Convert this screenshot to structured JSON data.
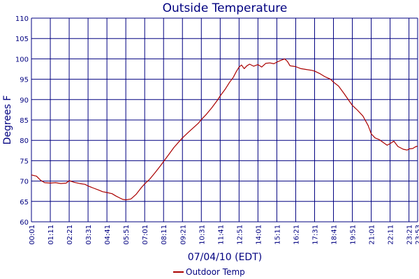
{
  "colors": {
    "axis": "#000080",
    "series": "#aa0000",
    "background": "#ffffff"
  },
  "chart_data": {
    "type": "line",
    "title": "Outside Temperature",
    "xlabel": "07/04/10 (EDT)",
    "ylabel": "Degrees F",
    "grid": true,
    "legend_position": "bottom-center",
    "x_ticks": [
      "00:01",
      "01:11",
      "02:21",
      "03:31",
      "04:41",
      "05:51",
      "07:01",
      "08:11",
      "09:21",
      "10:31",
      "11:41",
      "12:51",
      "14:01",
      "15:11",
      "16:21",
      "17:31",
      "18:41",
      "19:51",
      "21:01",
      "22:11",
      "23:21",
      "23:53"
    ],
    "y_ticks": [
      60,
      65,
      70,
      75,
      80,
      85,
      90,
      95,
      100,
      105,
      110
    ],
    "ylim": [
      60,
      110
    ],
    "xlim": [
      "00:01",
      "23:53"
    ],
    "series": [
      {
        "name": "Outdoor Temp",
        "color": "#aa0000",
        "points": [
          [
            "00:01",
            71.5
          ],
          [
            "00:20",
            71.2
          ],
          [
            "00:35",
            70.2
          ],
          [
            "00:50",
            69.6
          ],
          [
            "01:11",
            69.5
          ],
          [
            "01:30",
            69.6
          ],
          [
            "01:50",
            69.4
          ],
          [
            "02:10",
            69.5
          ],
          [
            "02:21",
            70.1
          ],
          [
            "02:40",
            69.7
          ],
          [
            "03:00",
            69.4
          ],
          [
            "03:20",
            69.2
          ],
          [
            "03:31",
            68.8
          ],
          [
            "03:50",
            68.3
          ],
          [
            "04:10",
            67.8
          ],
          [
            "04:25",
            67.4
          ],
          [
            "04:41",
            67.2
          ],
          [
            "05:00",
            66.9
          ],
          [
            "05:15",
            66.3
          ],
          [
            "05:30",
            65.8
          ],
          [
            "05:40",
            65.5
          ],
          [
            "05:51",
            65.4
          ],
          [
            "06:10",
            65.6
          ],
          [
            "06:30",
            66.8
          ],
          [
            "06:50",
            68.5
          ],
          [
            "07:01",
            69.3
          ],
          [
            "07:20",
            70.5
          ],
          [
            "07:40",
            72.1
          ],
          [
            "08:00",
            73.8
          ],
          [
            "08:11",
            74.8
          ],
          [
            "08:30",
            76.5
          ],
          [
            "08:50",
            78.3
          ],
          [
            "09:10",
            79.8
          ],
          [
            "09:21",
            80.6
          ],
          [
            "09:40",
            81.8
          ],
          [
            "10:00",
            83.0
          ],
          [
            "10:20",
            84.2
          ],
          [
            "10:31",
            85.1
          ],
          [
            "10:50",
            86.4
          ],
          [
            "11:10",
            88.0
          ],
          [
            "11:30",
            89.8
          ],
          [
            "11:41",
            90.9
          ],
          [
            "12:00",
            92.6
          ],
          [
            "12:15",
            94.2
          ],
          [
            "12:30",
            95.5
          ],
          [
            "12:40",
            96.8
          ],
          [
            "12:51",
            98.0
          ],
          [
            "13:00",
            98.5
          ],
          [
            "13:10",
            97.6
          ],
          [
            "13:20",
            98.3
          ],
          [
            "13:30",
            98.7
          ],
          [
            "13:45",
            98.2
          ],
          [
            "14:01",
            98.6
          ],
          [
            "14:15",
            98.0
          ],
          [
            "14:30",
            98.9
          ],
          [
            "14:45",
            99.0
          ],
          [
            "15:00",
            98.8
          ],
          [
            "15:11",
            99.2
          ],
          [
            "15:25",
            99.6
          ],
          [
            "15:40",
            100.0
          ],
          [
            "15:50",
            99.4
          ],
          [
            "16:00",
            98.3
          ],
          [
            "16:10",
            98.2
          ],
          [
            "16:21",
            98.1
          ],
          [
            "16:40",
            97.6
          ],
          [
            "17:00",
            97.4
          ],
          [
            "17:20",
            97.2
          ],
          [
            "17:31",
            97.0
          ],
          [
            "17:50",
            96.4
          ],
          [
            "18:10",
            95.6
          ],
          [
            "18:30",
            95.0
          ],
          [
            "18:41",
            94.3
          ],
          [
            "19:00",
            93.3
          ],
          [
            "19:20",
            91.5
          ],
          [
            "19:40",
            89.6
          ],
          [
            "19:51",
            88.6
          ],
          [
            "20:10",
            87.4
          ],
          [
            "20:30",
            86.0
          ],
          [
            "20:50",
            83.6
          ],
          [
            "21:01",
            81.6
          ],
          [
            "21:15",
            80.6
          ],
          [
            "21:30",
            80.2
          ],
          [
            "21:45",
            79.5
          ],
          [
            "22:00",
            78.8
          ],
          [
            "22:11",
            79.2
          ],
          [
            "22:25",
            79.8
          ],
          [
            "22:40",
            78.5
          ],
          [
            "23:00",
            77.8
          ],
          [
            "23:15",
            77.6
          ],
          [
            "23:21",
            77.9
          ],
          [
            "23:35",
            78.0
          ],
          [
            "23:45",
            78.4
          ],
          [
            "23:53",
            78.6
          ]
        ]
      }
    ]
  }
}
